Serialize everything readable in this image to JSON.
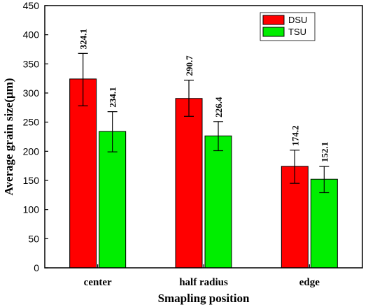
{
  "chart_data": {
    "type": "bar",
    "categories": [
      "center",
      "half radius",
      "edge"
    ],
    "series": [
      {
        "name": "DSU",
        "color": "#ff0000",
        "values": [
          324.1,
          290.7,
          174.2
        ],
        "error_low": [
          278,
          260,
          145
        ],
        "error_high": [
          368,
          322,
          202
        ],
        "labels": [
          "324.1",
          "290.7",
          "174.2"
        ]
      },
      {
        "name": "TSU",
        "color": "#00ee00",
        "values": [
          234.1,
          226.4,
          152.1
        ],
        "error_low": [
          199,
          201,
          129
        ],
        "error_high": [
          268,
          251,
          174
        ],
        "labels": [
          "234.1",
          "226.4",
          "152.1"
        ]
      }
    ],
    "xlabel": "Smapling  position",
    "ylabel": "Average grain size(μm)",
    "ylim": [
      0,
      450
    ],
    "yticks": [
      "0",
      "50",
      "100",
      "150",
      "200",
      "250",
      "300",
      "350",
      "400",
      "450"
    ],
    "grid": false,
    "legend_position": "top-right"
  }
}
